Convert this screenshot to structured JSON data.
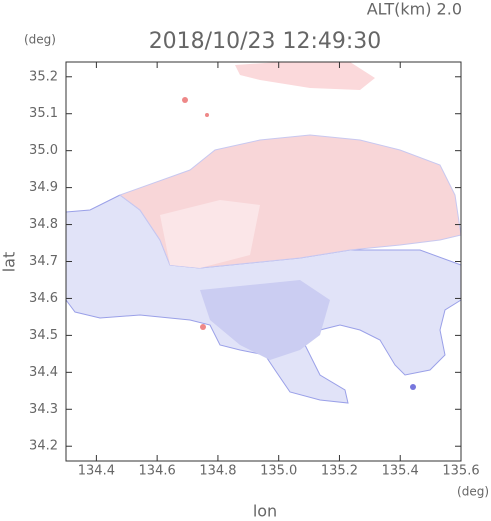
{
  "chart_data": {
    "type": "map",
    "title": "2018/10/23 12:49:30",
    "subtitle": "ALT(km) 2.0",
    "x_label": "lon",
    "y_label": "lat",
    "x_unit": "(deg)",
    "y_unit": "(deg)",
    "xlim": [
      134.3,
      135.6
    ],
    "xticks": [
      134.4,
      134.6,
      134.8,
      {
        "value": 135,
        "label": "135.0"
      },
      135.2,
      135.4,
      135.6
    ],
    "ylim": [
      34.16,
      35.24
    ],
    "yticks": [
      34.2,
      34.3,
      34.4,
      34.5,
      34.6,
      34.7,
      34.8,
      34.9,
      {
        "value": 35,
        "label": "35.0"
      },
      35.1,
      35.2
    ]
  }
}
